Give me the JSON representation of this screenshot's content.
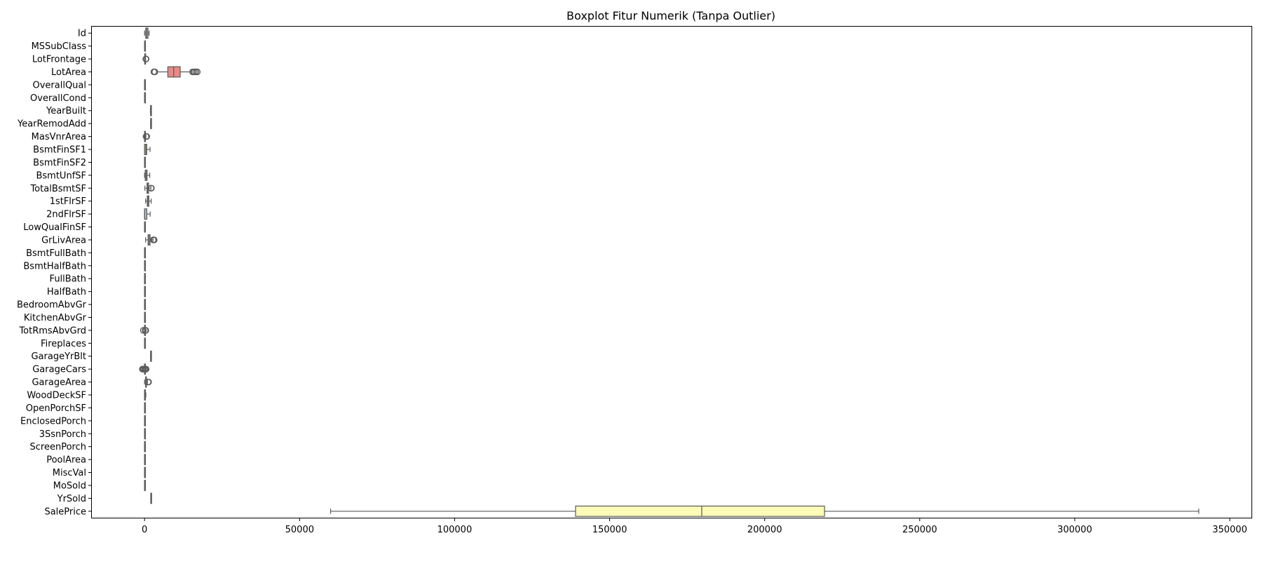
{
  "chart_data": {
    "type": "boxplot",
    "title": "Boxplot Fitur Numerik (Tanpa Outlier)",
    "xlabel": "",
    "ylabel": "",
    "xlim": [
      -17000,
      357000
    ],
    "xticks": [
      0,
      50000,
      100000,
      150000,
      200000,
      250000,
      300000,
      350000
    ],
    "orientation": "horizontal",
    "grid": false,
    "legend": "none",
    "categories": [
      "Id",
      "MSSubClass",
      "LotFrontage",
      "LotArea",
      "OverallQual",
      "OverallCond",
      "YearBuilt",
      "YearRemodAdd",
      "MasVnrArea",
      "BsmtFinSF1",
      "BsmtFinSF2",
      "BsmtUnfSF",
      "TotalBsmtSF",
      "1stFlrSF",
      "2ndFlrSF",
      "LowQualFinSF",
      "GrLivArea",
      "BsmtFullBath",
      "BsmtHalfBath",
      "FullBath",
      "HalfBath",
      "BedroomAbvGr",
      "KitchenAbvGr",
      "TotRmsAbvGrd",
      "Fireplaces",
      "GarageYrBlt",
      "GarageCars",
      "GarageArea",
      "WoodDeckSF",
      "OpenPorchSF",
      "EnclosedPorch",
      "3SsnPorch",
      "ScreenPorch",
      "PoolArea",
      "MiscVal",
      "MoSold",
      "YrSold",
      "SalePrice"
    ],
    "boxes": [
      {
        "name": "Id",
        "whislo": 1,
        "q1": 366,
        "med": 730,
        "q3": 1095,
        "whishi": 1460,
        "fliers": [],
        "color": "#b5dcd6"
      },
      {
        "name": "MSSubClass",
        "whislo": 20,
        "q1": 20,
        "med": 50,
        "q3": 70,
        "whishi": 145,
        "fliers": [],
        "color": "#c9c2e0"
      },
      {
        "name": "LotFrontage",
        "whislo": 35,
        "q1": 60,
        "med": 69,
        "q3": 80,
        "whishi": 109,
        "fliers": [
          400,
          500
        ],
        "color": "#e8c0c0"
      },
      {
        "name": "LotArea",
        "whislo": 4000,
        "q1": 7500,
        "med": 9400,
        "q3": 11500,
        "whishi": 15000,
        "fliers": [
          3000,
          3300,
          15500,
          16000,
          16500,
          17000
        ],
        "color": "#e78a86"
      },
      {
        "name": "OverallQual",
        "whislo": 3,
        "q1": 5,
        "med": 6,
        "q3": 7,
        "whishi": 10,
        "fliers": [],
        "color": "#a6c6dd"
      },
      {
        "name": "OverallCond",
        "whislo": 3,
        "q1": 5,
        "med": 5,
        "q3": 6,
        "whishi": 8,
        "fliers": [],
        "color": "#f5c48f"
      },
      {
        "name": "YearBuilt",
        "whislo": 1885,
        "q1": 1954,
        "med": 1973,
        "q3": 2000,
        "whishi": 2010,
        "fliers": [],
        "color": "#c7e3a6"
      },
      {
        "name": "YearRemodAdd",
        "whislo": 1950,
        "q1": 1967,
        "med": 1994,
        "q3": 2004,
        "whishi": 2010,
        "fliers": [],
        "color": "#f2c9e0"
      },
      {
        "name": "MasVnrArea",
        "whislo": 0,
        "q1": 0,
        "med": 0,
        "q3": 166,
        "whishi": 415,
        "fliers": [
          500,
          700
        ],
        "color": "#d0d0d0"
      },
      {
        "name": "BsmtFinSF1",
        "whislo": 0,
        "q1": 0,
        "med": 384,
        "q3": 712,
        "whishi": 1780,
        "fliers": [],
        "color": "#d6d6a0"
      },
      {
        "name": "BsmtFinSF2",
        "whislo": 0,
        "q1": 0,
        "med": 0,
        "q3": 0,
        "whishi": 0,
        "fliers": [],
        "color": "#b5dcd6"
      },
      {
        "name": "BsmtUnfSF",
        "whislo": 0,
        "q1": 223,
        "med": 478,
        "q3": 808,
        "whishi": 1680,
        "fliers": [],
        "color": "#e3d59e"
      },
      {
        "name": "TotalBsmtSF",
        "whislo": 105,
        "q1": 796,
        "med": 992,
        "q3": 1298,
        "whishi": 2040,
        "fliers": [
          2100,
          2200
        ],
        "color": "#b8b0d8"
      },
      {
        "name": "1stFlrSF",
        "whislo": 334,
        "q1": 882,
        "med": 1087,
        "q3": 1391,
        "whishi": 2150,
        "fliers": [],
        "color": "#e8b5b0"
      },
      {
        "name": "2ndFlrSF",
        "whislo": 0,
        "q1": 0,
        "med": 0,
        "q3": 728,
        "whishi": 1800,
        "fliers": [],
        "color": "#a6c6dd"
      },
      {
        "name": "LowQualFinSF",
        "whislo": 0,
        "q1": 0,
        "med": 0,
        "q3": 0,
        "whishi": 0,
        "fliers": [],
        "color": "#f5c48f"
      },
      {
        "name": "GrLivArea",
        "whislo": 334,
        "q1": 1130,
        "med": 1464,
        "q3": 1777,
        "whishi": 2730,
        "fliers": [
          2800,
          3000,
          3100
        ],
        "color": "#c7e3a6"
      },
      {
        "name": "BsmtFullBath",
        "whislo": 0,
        "q1": 0,
        "med": 0,
        "q3": 1,
        "whishi": 2,
        "fliers": [],
        "color": "#f2c9e0"
      },
      {
        "name": "BsmtHalfBath",
        "whislo": 0,
        "q1": 0,
        "med": 0,
        "q3": 0,
        "whishi": 0,
        "fliers": [],
        "color": "#d0d0d0"
      },
      {
        "name": "FullBath",
        "whislo": 0,
        "q1": 1,
        "med": 2,
        "q3": 2,
        "whishi": 3,
        "fliers": [],
        "color": "#d6d6a0"
      },
      {
        "name": "HalfBath",
        "whislo": 0,
        "q1": 0,
        "med": 0,
        "q3": 1,
        "whishi": 2,
        "fliers": [],
        "color": "#b5dcd6"
      },
      {
        "name": "BedroomAbvGr",
        "whislo": 1,
        "q1": 2,
        "med": 3,
        "q3": 3,
        "whishi": 4,
        "fliers": [],
        "color": "#e3d59e"
      },
      {
        "name": "KitchenAbvGr",
        "whislo": 1,
        "q1": 1,
        "med": 1,
        "q3": 1,
        "whishi": 1,
        "fliers": [],
        "color": "#b8b0d8"
      },
      {
        "name": "TotRmsAbvGrd",
        "whislo": 3,
        "q1": 5,
        "med": 6,
        "q3": 7,
        "whishi": 10,
        "fliers": [
          -400,
          200,
          400
        ],
        "color": "#e8b5b0"
      },
      {
        "name": "Fireplaces",
        "whislo": 0,
        "q1": 0,
        "med": 1,
        "q3": 1,
        "whishi": 2,
        "fliers": [],
        "color": "#a6c6dd"
      },
      {
        "name": "GarageYrBlt",
        "whislo": 1930,
        "q1": 1961,
        "med": 1980,
        "q3": 2002,
        "whishi": 2010,
        "fliers": [],
        "color": "#f5c48f"
      },
      {
        "name": "GarageCars",
        "whislo": 0,
        "q1": 1,
        "med": 2,
        "q3": 2,
        "whishi": 3,
        "fliers": [
          -700,
          -400,
          0,
          300,
          500
        ],
        "color": "#c7e3a6"
      },
      {
        "name": "GarageArea",
        "whislo": 0,
        "q1": 334,
        "med": 480,
        "q3": 576,
        "whishi": 938,
        "fliers": [
          1150,
          1300
        ],
        "color": "#f2c9e0"
      },
      {
        "name": "WoodDeckSF",
        "whislo": 0,
        "q1": 0,
        "med": 0,
        "q3": 168,
        "whishi": 420,
        "fliers": [],
        "color": "#d0d0d0"
      },
      {
        "name": "OpenPorchSF",
        "whislo": 0,
        "q1": 0,
        "med": 25,
        "q3": 68,
        "whishi": 170,
        "fliers": [],
        "color": "#d6d6a0"
      },
      {
        "name": "EnclosedPorch",
        "whislo": 0,
        "q1": 0,
        "med": 0,
        "q3": 0,
        "whishi": 0,
        "fliers": [],
        "color": "#b5dcd6"
      },
      {
        "name": "3SsnPorch",
        "whislo": 0,
        "q1": 0,
        "med": 0,
        "q3": 0,
        "whishi": 0,
        "fliers": [],
        "color": "#e3d59e"
      },
      {
        "name": "ScreenPorch",
        "whislo": 0,
        "q1": 0,
        "med": 0,
        "q3": 0,
        "whishi": 0,
        "fliers": [],
        "color": "#b8b0d8"
      },
      {
        "name": "PoolArea",
        "whislo": 0,
        "q1": 0,
        "med": 0,
        "q3": 0,
        "whishi": 0,
        "fliers": [],
        "color": "#e8b5b0"
      },
      {
        "name": "MiscVal",
        "whislo": 0,
        "q1": 0,
        "med": 0,
        "q3": 0,
        "whishi": 0,
        "fliers": [],
        "color": "#a6c6dd"
      },
      {
        "name": "MoSold",
        "whislo": 1,
        "q1": 5,
        "med": 6,
        "q3": 8,
        "whishi": 12,
        "fliers": [],
        "color": "#f5c48f"
      },
      {
        "name": "YrSold",
        "whislo": 2006,
        "q1": 2007,
        "med": 2008,
        "q3": 2009,
        "whishi": 2010,
        "fliers": [],
        "color": "#c7e3a6"
      },
      {
        "name": "SalePrice",
        "whislo": 60000,
        "q1": 139000,
        "med": 179700,
        "q3": 219300,
        "whishi": 340000,
        "fliers": [],
        "color": "#fcfcb8"
      }
    ]
  }
}
